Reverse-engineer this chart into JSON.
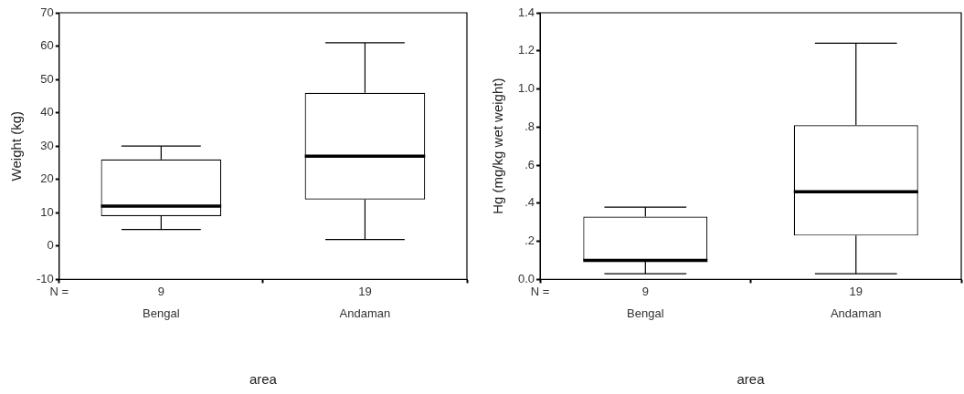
{
  "chart_data": [
    {
      "type": "box",
      "categories": [
        "Bengal",
        "Andaman"
      ],
      "xlabel": "area",
      "ylabel": "Weight (kg)",
      "ylim": [
        -10,
        70
      ],
      "yticks": [
        -10,
        0,
        10,
        20,
        30,
        40,
        50,
        60,
        70
      ],
      "grid": false,
      "boxes": [
        {
          "low": 5,
          "q1": 9,
          "median": 12,
          "q3": 26,
          "high": 30
        },
        {
          "low": 2,
          "q1": 14,
          "median": 27,
          "q3": 46,
          "high": 61
        }
      ],
      "annotations": [
        "N =",
        "9",
        "19"
      ]
    },
    {
      "type": "box",
      "categories": [
        "Bengal",
        "Andaman"
      ],
      "xlabel": "area",
      "ylabel": "Hg (mg/kg wet weight)",
      "ylim": [
        0,
        1.4
      ],
      "yticks": [
        {
          "value": 0,
          "label": "0.0"
        },
        {
          "value": 0.2,
          "label": ".2"
        },
        {
          "value": 0.4,
          "label": ".4"
        },
        {
          "value": 0.6,
          "label": ".6"
        },
        {
          "value": 0.8,
          "label": ".8"
        },
        {
          "value": 1,
          "label": "1.0"
        },
        {
          "value": 1.2,
          "label": "1.2"
        },
        {
          "value": 1.4,
          "label": "1.4"
        }
      ],
      "grid": false,
      "boxes": [
        {
          "low": 0.03,
          "q1": 0.1,
          "median": 0.1,
          "q3": 0.33,
          "high": 0.38
        },
        {
          "low": 0.03,
          "q1": 0.23,
          "median": 0.46,
          "q3": 0.81,
          "high": 1.24
        }
      ],
      "annotations": [
        "N =",
        "9",
        "19"
      ]
    }
  ]
}
